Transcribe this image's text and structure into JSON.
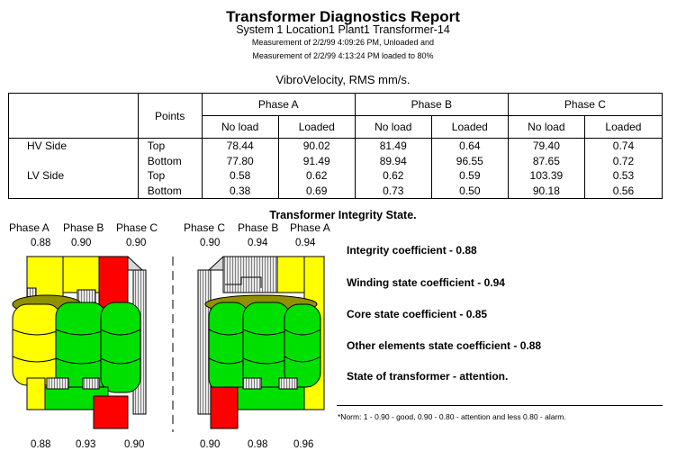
{
  "report": {
    "title": "Transformer Diagnostics Report",
    "subtitle": "System 1 Location1 Plant1 Transformer-14",
    "measurement1": "Measurement of 2/2/99 4:09:26 PM, Unloaded and",
    "measurement2": "Measurement of 2/2/99 4:13:24 PM loaded to 80%",
    "units": "VibroVelocity, RMS mm/s."
  },
  "table": {
    "points_header": "Points",
    "phases": [
      "Phase A",
      "Phase B",
      "Phase C"
    ],
    "subheaders": [
      "No load",
      "Loaded",
      "No load",
      "Loaded",
      "No load",
      "Loaded"
    ],
    "groups": [
      {
        "side": "HV Side",
        "rows": [
          {
            "point": "Top",
            "values": [
              "78.44",
              "90.02",
              "81.49",
              "0.64",
              "79.40",
              "0.74"
            ]
          },
          {
            "point": "Bottom",
            "values": [
              "77.80",
              "91.49",
              "89.94",
              "96.55",
              "87.65",
              "0.72"
            ]
          }
        ]
      },
      {
        "side": "LV Side",
        "rows": [
          {
            "point": "Top",
            "values": [
              "0.58",
              "0.62",
              "0.62",
              "0.59",
              "103.39",
              "0.53"
            ]
          },
          {
            "point": "Bottom",
            "values": [
              "0.38",
              "0.69",
              "0.73",
              "0.50",
              "90.18",
              "0.56"
            ]
          }
        ]
      }
    ]
  },
  "integrity": {
    "title": "Transformer Integrity State.",
    "left": {
      "phases": [
        "Phase A",
        "Phase B",
        "Phase C"
      ],
      "top_coefs": [
        "0.88",
        "0.90",
        "0.90"
      ],
      "bottom_coefs": [
        "0.88",
        "0.93",
        "0.90"
      ]
    },
    "right": {
      "phases": [
        "Phase C",
        "Phase B",
        "Phase A"
      ],
      "top_coefs": [
        "0.90",
        "0.94",
        "0.94"
      ],
      "bottom_coefs": [
        "0.90",
        "0.98",
        "0.96"
      ]
    },
    "coefficients": [
      "Integrity coefficient - 0.88",
      "Winding state coefficient - 0.94",
      "Core state coefficient - 0.85",
      "Other elements state coefficient - 0.88",
      "State of transformer - attention."
    ],
    "norm": "*Norm: 1 - 0.90 - good, 0.90 - 0.80 - attention and less 0.80 - alarm.",
    "colors": {
      "good": "#00e000",
      "attention": "#ffff00",
      "alarm": "#ff0000",
      "core": "#909000",
      "steel": "#c8c8c8"
    }
  }
}
